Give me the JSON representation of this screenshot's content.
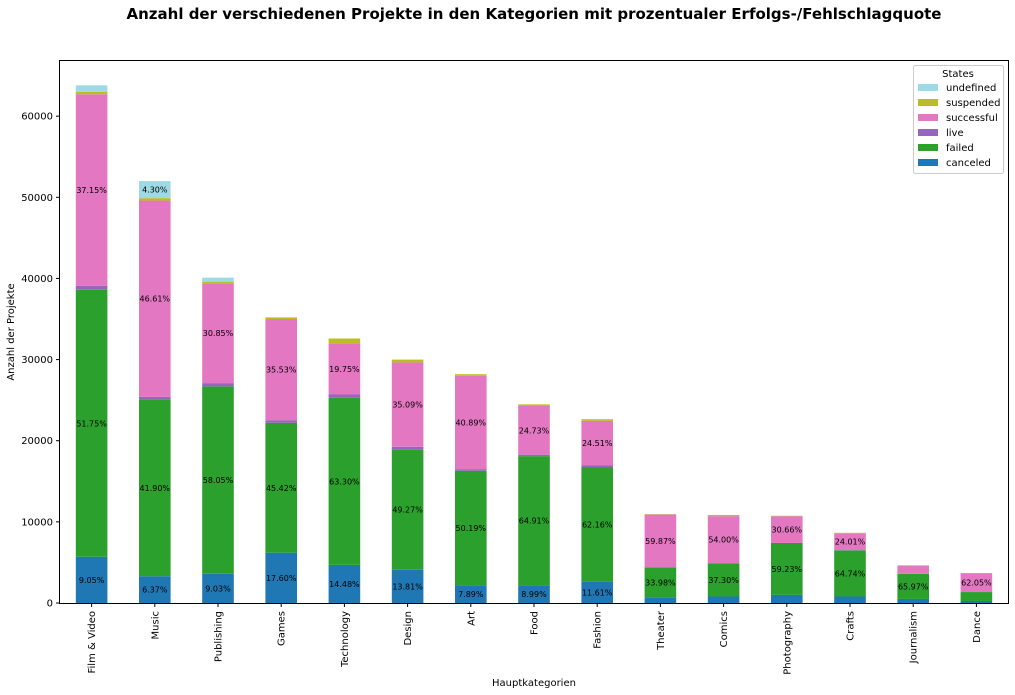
{
  "chart_data": {
    "type": "bar",
    "stacked": true,
    "title": "Anzahl der verschiedenen Projekte in den Kategorien mit prozentualer Erfolgs-/Fehlschlagquote",
    "xlabel": "Hauptkategorien",
    "ylabel": "Anzahl der Projekte",
    "ylim": [
      0,
      66800
    ],
    "yticks": [
      0,
      10000,
      20000,
      30000,
      40000,
      50000,
      60000
    ],
    "ytick_labels": [
      "0",
      "10000",
      "20000",
      "30000",
      "40000",
      "50000",
      "60000"
    ],
    "grid": false,
    "legend_title": "States",
    "legend_position": "top-right",
    "categories": [
      "Film & Video",
      "Music",
      "Publishing",
      "Games",
      "Technology",
      "Design",
      "Art",
      "Food",
      "Fashion",
      "Theater",
      "Comics",
      "Photography",
      "Crafts",
      "Journalism",
      "Dance"
    ],
    "series": [
      {
        "name": "canceled",
        "color": "#1f77b4",
        "values": [
          5700,
          3300,
          3600,
          6200,
          4700,
          4100,
          2200,
          2200,
          2600,
          700,
          800,
          1000,
          800,
          500,
          250
        ],
        "labels": [
          "9.05%",
          "6.37%",
          "9.03%",
          "17.60%",
          "14.48%",
          "13.81%",
          "7.89%",
          "8.99%",
          "11.61%",
          "",
          "",
          "",
          "",
          "",
          ""
        ]
      },
      {
        "name": "failed",
        "color": "#2ca02c",
        "values": [
          32900,
          21800,
          23100,
          16000,
          20600,
          14800,
          14100,
          15900,
          14100,
          3700,
          4100,
          6400,
          5700,
          3100,
          1100
        ],
        "labels": [
          "51.75%",
          "41.90%",
          "58.05%",
          "45.42%",
          "63.30%",
          "49.27%",
          "50.19%",
          "64.91%",
          "62.16%",
          "33.98%",
          "37.30%",
          "59.23%",
          "64.74%",
          "65.97%",
          ""
        ]
      },
      {
        "name": "live",
        "color": "#9467bd",
        "values": [
          500,
          300,
          400,
          300,
          400,
          350,
          200,
          180,
          250,
          0,
          0,
          0,
          0,
          0,
          0
        ],
        "labels": [
          "",
          "",
          "",
          "",
          "",
          "",
          "",
          "",
          "",
          "",
          "",
          "",
          "",
          "",
          ""
        ]
      },
      {
        "name": "successful",
        "color": "#e377c2",
        "values": [
          23600,
          24200,
          12300,
          12500,
          6300,
          10400,
          11500,
          6000,
          5500,
          6500,
          5800,
          3300,
          2100,
          1000,
          2300
        ],
        "labels": [
          "37.15%",
          "46.61%",
          "30.85%",
          "35.53%",
          "19.75%",
          "35.09%",
          "40.89%",
          "24.73%",
          "24.51%",
          "59.87%",
          "54.00%",
          "30.66%",
          "24.01%",
          "",
          "62.05%"
        ]
      },
      {
        "name": "suspended",
        "color": "#bcbd22",
        "values": [
          300,
          300,
          200,
          200,
          600,
          350,
          200,
          200,
          200,
          50,
          150,
          50,
          50,
          50,
          50
        ],
        "labels": [
          "",
          "",
          "",
          "",
          "",
          "",
          "",
          "",
          "",
          "",
          "",
          "",
          "",
          "",
          ""
        ]
      },
      {
        "name": "undefined",
        "color": "#9edae5",
        "values": [
          800,
          2100,
          500,
          0,
          0,
          0,
          0,
          0,
          0,
          0,
          0,
          0,
          0,
          0,
          0
        ],
        "labels": [
          "",
          "4.30%",
          "",
          "",
          "",
          "",
          "",
          "",
          "",
          "",
          "",
          "",
          "",
          "",
          ""
        ]
      }
    ]
  }
}
